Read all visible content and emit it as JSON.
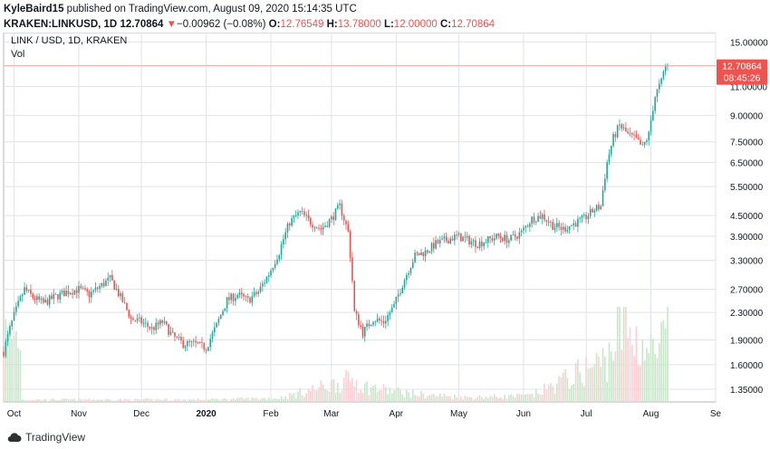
{
  "header": {
    "author": "KyleBaird15",
    "published_text": " published on TradingView.com, August 09, 2020 15:14:35 UTC",
    "symbol": "KRAKEN:LINKUSD, 1D",
    "last": "12.70864",
    "change_arrow": "▼",
    "change": "−0.00962 (−0.08%)",
    "o_label": "O:",
    "o_value": "12.76549",
    "h_label": "H:",
    "h_value": "13.78000",
    "l_label": "L:",
    "l_value": "12.00000",
    "c_label": "C:",
    "c_value": "12.70864"
  },
  "legend": {
    "title": "LINK / USD, 1D, KRAKEN",
    "vol": "Vol"
  },
  "price_tag": {
    "price": "12.70864",
    "countdown": "08:45:26"
  },
  "footer": {
    "brand": "TradingView"
  },
  "colors": {
    "up": "#26a69a",
    "down": "#ef5350",
    "vol_up": "#c8e6c9",
    "vol_down": "#ffcdd2",
    "grid": "#e0e3eb",
    "price_line": "#f7a6a6"
  },
  "chart_data": {
    "type": "candlestick",
    "y_scale": "log",
    "y_ticks": [
      "15.00000",
      "11.00000",
      "9.00000",
      "7.50000",
      "6.50000",
      "5.50000",
      "4.50000",
      "3.90000",
      "3.30000",
      "2.70000",
      "2.30000",
      "1.90000",
      "1.60000",
      "1.35000"
    ],
    "x_ticks": [
      "Oct",
      "Nov",
      "Dec",
      "2020",
      "Feb",
      "Mar",
      "Apr",
      "May",
      "Jun",
      "Jul",
      "Aug",
      "Se"
    ],
    "x_range": [
      "2019-09-26",
      "2020-09-01"
    ],
    "series": [
      {
        "date": "2019-09-26",
        "value": 1.75
      },
      {
        "date": "2019-10-01",
        "value": 2.25
      },
      {
        "date": "2019-10-06",
        "value": 2.7
      },
      {
        "date": "2019-10-10",
        "value": 2.55
      },
      {
        "date": "2019-10-15",
        "value": 2.45
      },
      {
        "date": "2019-10-20",
        "value": 2.55
      },
      {
        "date": "2019-10-26",
        "value": 2.65
      },
      {
        "date": "2019-11-01",
        "value": 2.7
      },
      {
        "date": "2019-11-06",
        "value": 2.6
      },
      {
        "date": "2019-11-11",
        "value": 2.75
      },
      {
        "date": "2019-11-16",
        "value": 2.9
      },
      {
        "date": "2019-11-21",
        "value": 2.55
      },
      {
        "date": "2019-11-26",
        "value": 2.2
      },
      {
        "date": "2019-12-01",
        "value": 2.15
      },
      {
        "date": "2019-12-06",
        "value": 2.05
      },
      {
        "date": "2019-12-11",
        "value": 2.15
      },
      {
        "date": "2019-12-16",
        "value": 1.95
      },
      {
        "date": "2019-12-21",
        "value": 1.85
      },
      {
        "date": "2019-12-26",
        "value": 1.85
      },
      {
        "date": "2020-01-01",
        "value": 1.8
      },
      {
        "date": "2020-01-06",
        "value": 2.1
      },
      {
        "date": "2020-01-11",
        "value": 2.5
      },
      {
        "date": "2020-01-16",
        "value": 2.6
      },
      {
        "date": "2020-01-21",
        "value": 2.5
      },
      {
        "date": "2020-01-26",
        "value": 2.65
      },
      {
        "date": "2020-01-31",
        "value": 3.0
      },
      {
        "date": "2020-02-05",
        "value": 3.5
      },
      {
        "date": "2020-02-10",
        "value": 4.3
      },
      {
        "date": "2020-02-15",
        "value": 4.6
      },
      {
        "date": "2020-02-20",
        "value": 4.3
      },
      {
        "date": "2020-02-25",
        "value": 4.1
      },
      {
        "date": "2020-03-01",
        "value": 4.4
      },
      {
        "date": "2020-03-05",
        "value": 4.8
      },
      {
        "date": "2020-03-09",
        "value": 4.0
      },
      {
        "date": "2020-03-12",
        "value": 2.3
      },
      {
        "date": "2020-03-16",
        "value": 2.0
      },
      {
        "date": "2020-03-21",
        "value": 2.2
      },
      {
        "date": "2020-03-26",
        "value": 2.15
      },
      {
        "date": "2020-03-31",
        "value": 2.4
      },
      {
        "date": "2020-04-05",
        "value": 2.9
      },
      {
        "date": "2020-04-10",
        "value": 3.4
      },
      {
        "date": "2020-04-15",
        "value": 3.5
      },
      {
        "date": "2020-04-20",
        "value": 3.7
      },
      {
        "date": "2020-04-25",
        "value": 3.8
      },
      {
        "date": "2020-04-30",
        "value": 3.9
      },
      {
        "date": "2020-05-05",
        "value": 3.8
      },
      {
        "date": "2020-05-10",
        "value": 3.7
      },
      {
        "date": "2020-05-15",
        "value": 3.8
      },
      {
        "date": "2020-05-20",
        "value": 3.9
      },
      {
        "date": "2020-05-25",
        "value": 3.8
      },
      {
        "date": "2020-05-31",
        "value": 4.0
      },
      {
        "date": "2020-06-05",
        "value": 4.4
      },
      {
        "date": "2020-06-10",
        "value": 4.5
      },
      {
        "date": "2020-06-15",
        "value": 4.2
      },
      {
        "date": "2020-06-20",
        "value": 4.1
      },
      {
        "date": "2020-06-25",
        "value": 4.25
      },
      {
        "date": "2020-06-30",
        "value": 4.4
      },
      {
        "date": "2020-07-05",
        "value": 4.7
      },
      {
        "date": "2020-07-08",
        "value": 4.8
      },
      {
        "date": "2020-07-11",
        "value": 6.5
      },
      {
        "date": "2020-07-14",
        "value": 7.7
      },
      {
        "date": "2020-07-17",
        "value": 8.4
      },
      {
        "date": "2020-07-21",
        "value": 7.9
      },
      {
        "date": "2020-07-25",
        "value": 7.6
      },
      {
        "date": "2020-07-28",
        "value": 7.2
      },
      {
        "date": "2020-07-31",
        "value": 7.9
      },
      {
        "date": "2020-08-03",
        "value": 10.3
      },
      {
        "date": "2020-08-06",
        "value": 11.4
      },
      {
        "date": "2020-08-08",
        "value": 12.75
      },
      {
        "date": "2020-08-09",
        "value": 12.71
      }
    ],
    "volume": [
      {
        "date": "2019-10-05",
        "value": 0.03
      },
      {
        "date": "2019-11-01",
        "value": 0.03
      },
      {
        "date": "2019-12-01",
        "value": 0.03
      },
      {
        "date": "2020-01-01",
        "value": 0.03
      },
      {
        "date": "2020-02-05",
        "value": 0.05
      },
      {
        "date": "2020-03-12",
        "value": 0.3
      },
      {
        "date": "2020-03-16",
        "value": 0.2
      },
      {
        "date": "2020-04-10",
        "value": 0.1
      },
      {
        "date": "2020-05-05",
        "value": 0.06
      },
      {
        "date": "2020-06-05",
        "value": 0.08
      },
      {
        "date": "2020-07-11",
        "value": 0.55
      },
      {
        "date": "2020-07-17",
        "value": 1.0
      },
      {
        "date": "2020-08-03",
        "value": 0.6
      },
      {
        "date": "2020-08-08",
        "value": 0.85
      }
    ]
  }
}
